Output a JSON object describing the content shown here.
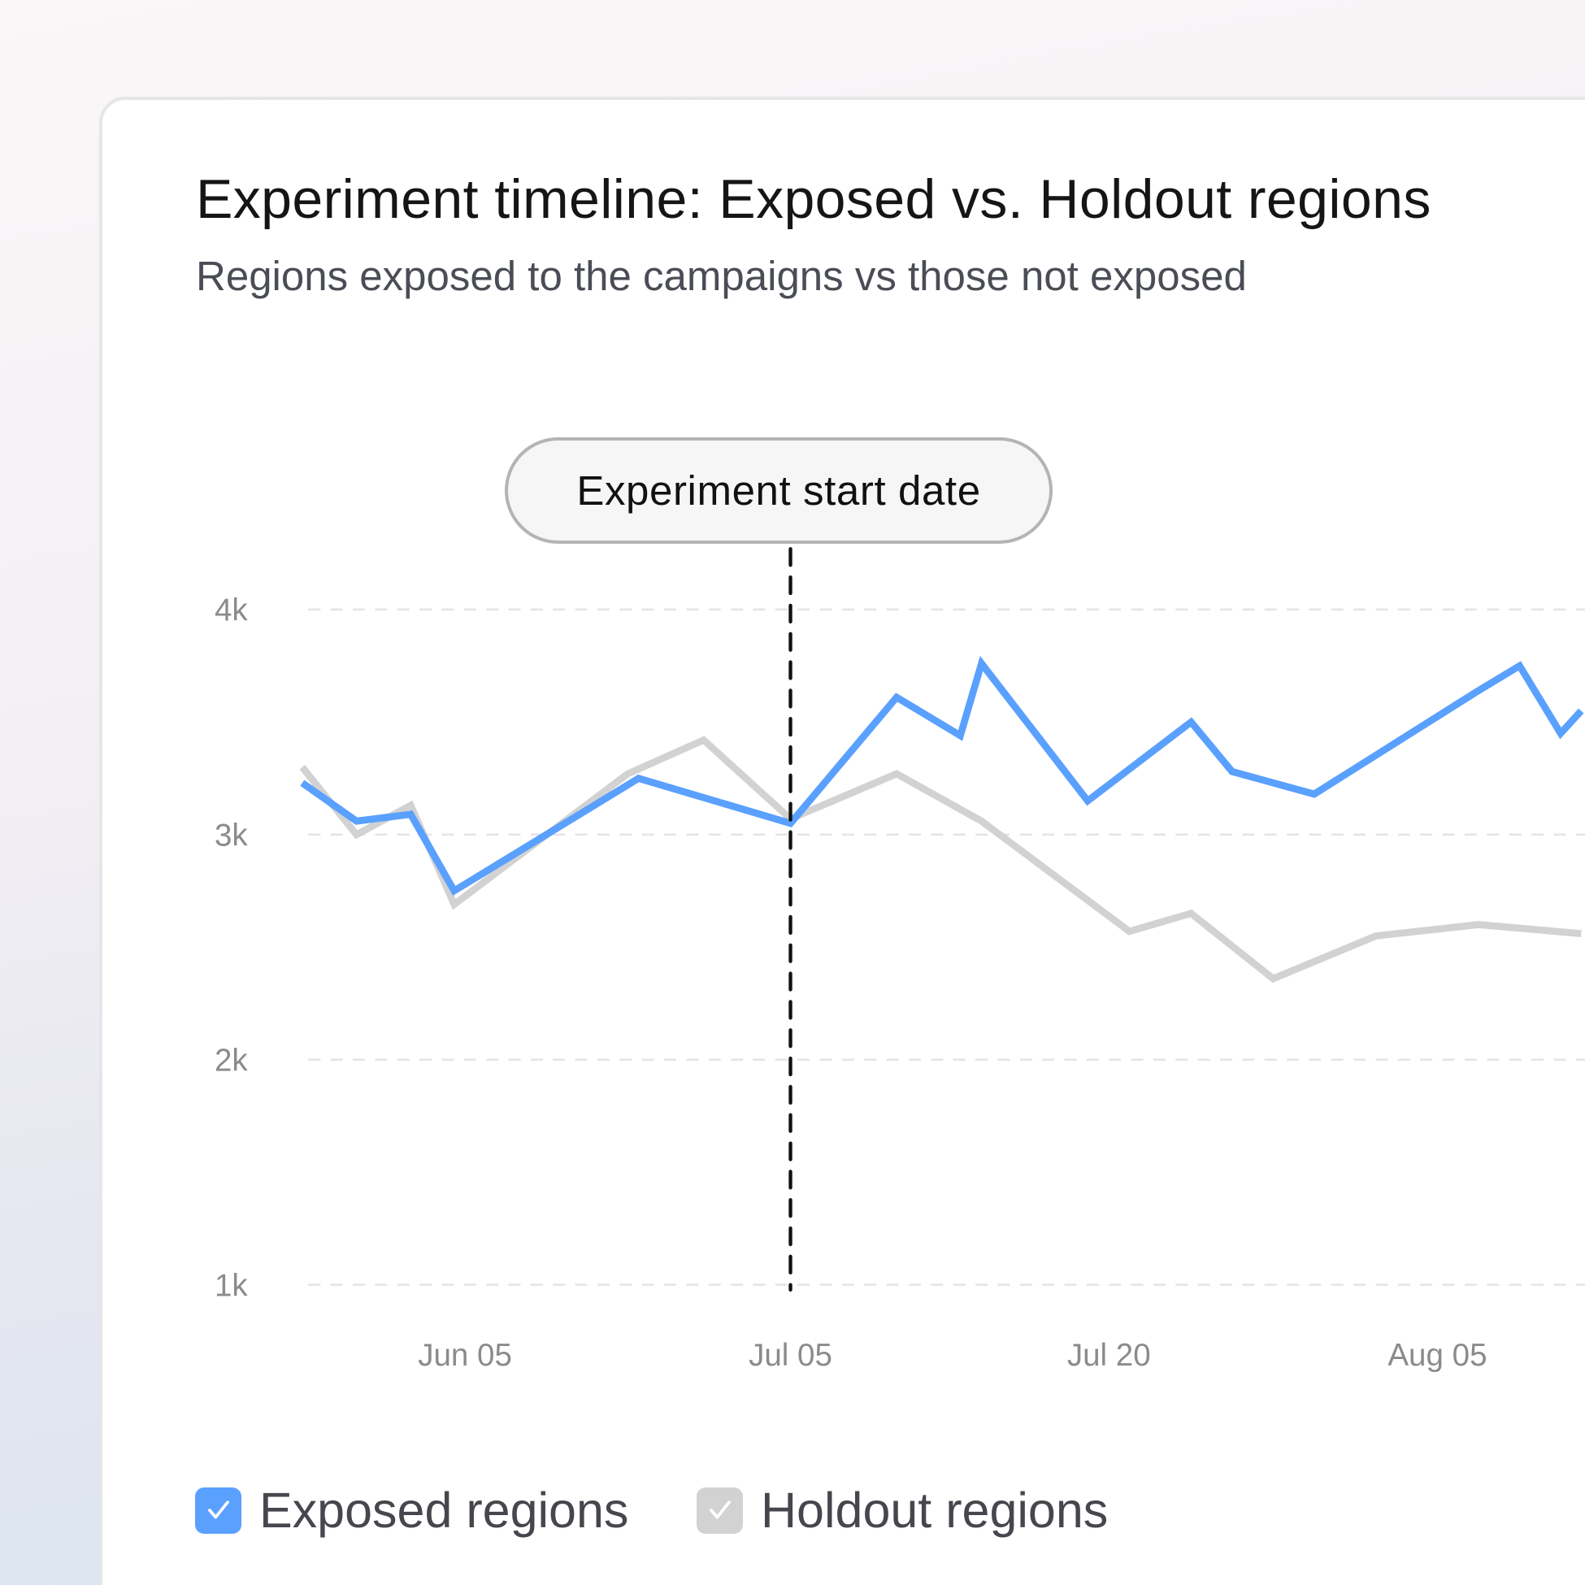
{
  "card": {
    "title": "Experiment timeline: Exposed vs. Holdout regions",
    "subtitle": "Regions exposed to the campaigns vs those not exposed"
  },
  "annotation": {
    "label": "Experiment start date",
    "date": "Jul 05"
  },
  "legend": [
    {
      "label": "Exposed regions",
      "checked": true,
      "color": "#5aa0fe",
      "icon": "check-icon"
    },
    {
      "label": "Holdout regions",
      "checked": true,
      "color": "#d2d2d2",
      "icon": "check-icon"
    }
  ],
  "chart_data": {
    "type": "line",
    "title": "Experiment timeline: Exposed vs. Holdout regions",
    "subtitle": "Regions exposed to the campaigns vs those not exposed",
    "xlabel": "",
    "ylabel": "",
    "x_ticks": [
      "Jun 05",
      "Jul 05",
      "Jul 20",
      "Aug 05"
    ],
    "x_tick_dates": [
      "2024-06-05",
      "2024-07-05",
      "2024-07-20",
      "2024-08-05"
    ],
    "y_ticks": [
      "1k",
      "2k",
      "3k",
      "4k"
    ],
    "y_tick_values": [
      1000,
      2000,
      3000,
      4000
    ],
    "ylim": [
      1000,
      4000
    ],
    "grid": "horizontal dashed",
    "legend_position": "bottom-left",
    "vertical_marker": {
      "date": "2024-07-05",
      "label": "Experiment start date",
      "style": "dashed",
      "color": "#111111"
    },
    "series": [
      {
        "name": "Exposed regions",
        "color": "#5aa0fe",
        "points": [
          [
            "2024-05-21",
            3230
          ],
          [
            "2024-05-26",
            3060
          ],
          [
            "2024-05-31",
            3090
          ],
          [
            "2024-06-04",
            2750
          ],
          [
            "2024-06-21",
            3250
          ],
          [
            "2024-07-05",
            3050
          ],
          [
            "2024-07-10",
            3610
          ],
          [
            "2024-07-13",
            3440
          ],
          [
            "2024-07-14",
            3760
          ],
          [
            "2024-07-19",
            3150
          ],
          [
            "2024-07-24",
            3500
          ],
          [
            "2024-07-26",
            3280
          ],
          [
            "2024-07-30",
            3180
          ],
          [
            "2024-08-07",
            3640
          ],
          [
            "2024-08-09",
            3750
          ],
          [
            "2024-08-11",
            3450
          ],
          [
            "2024-08-12",
            3550
          ]
        ]
      },
      {
        "name": "Holdout regions",
        "color": "#d2d2d2",
        "points": [
          [
            "2024-05-21",
            3300
          ],
          [
            "2024-05-26",
            3000
          ],
          [
            "2024-05-31",
            3130
          ],
          [
            "2024-06-04",
            2690
          ],
          [
            "2024-06-20",
            3270
          ],
          [
            "2024-06-27",
            3420
          ],
          [
            "2024-07-05",
            3070
          ],
          [
            "2024-07-10",
            3270
          ],
          [
            "2024-07-14",
            3060
          ],
          [
            "2024-07-21",
            2570
          ],
          [
            "2024-07-24",
            2650
          ],
          [
            "2024-07-28",
            2360
          ],
          [
            "2024-08-02",
            2550
          ],
          [
            "2024-08-07",
            2600
          ],
          [
            "2024-08-12",
            2560
          ]
        ]
      }
    ]
  }
}
